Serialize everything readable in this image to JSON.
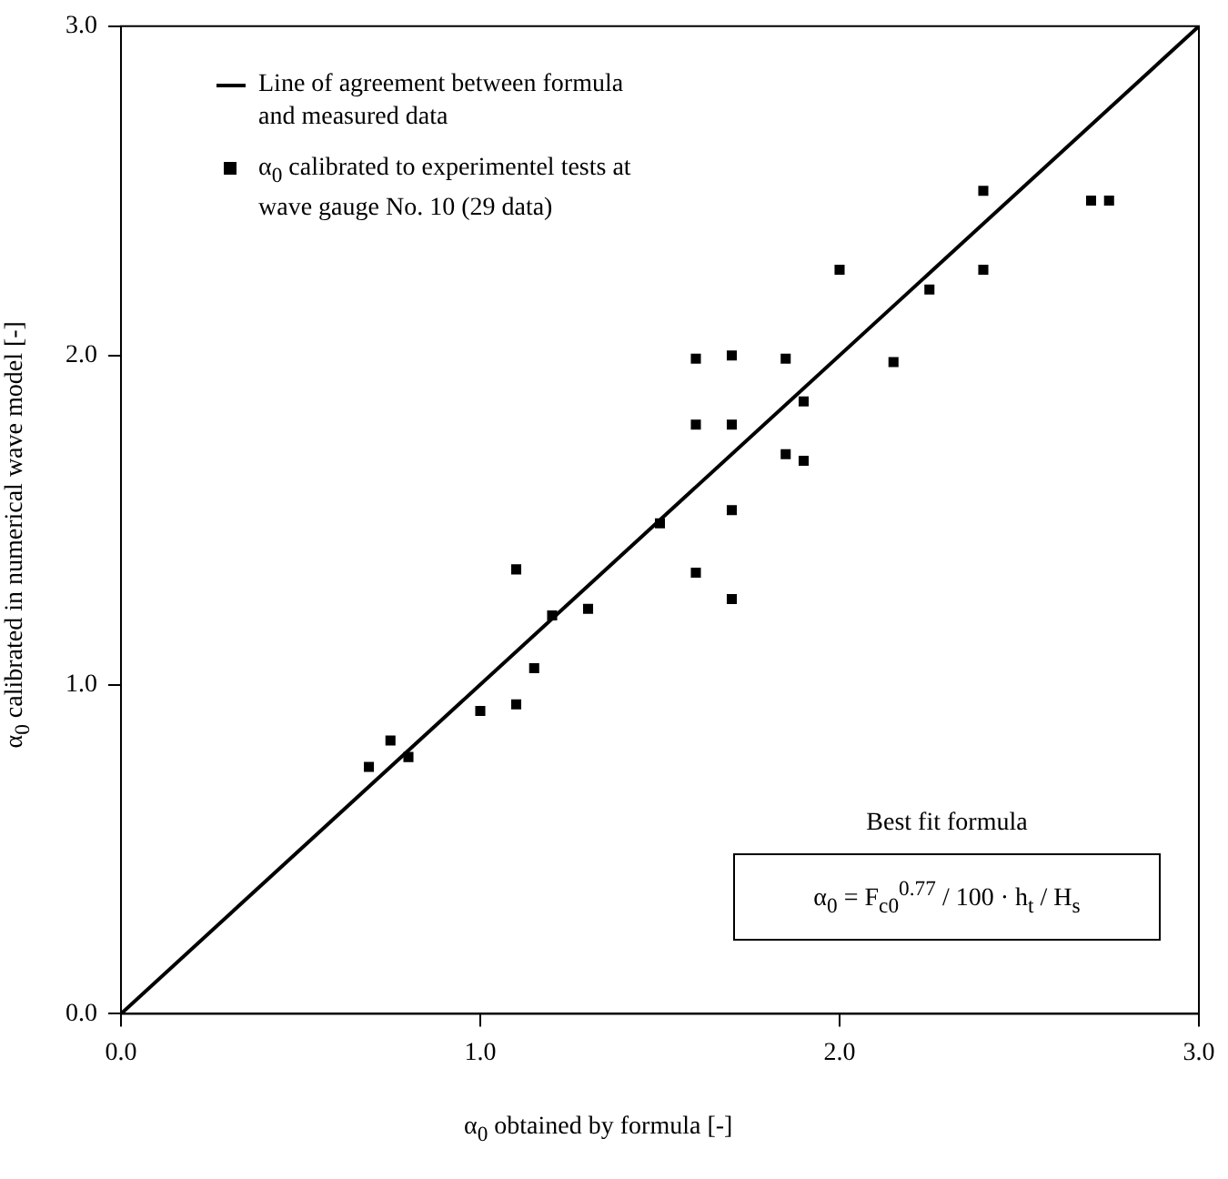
{
  "chart_data": {
    "type": "scatter",
    "xlabel": "α$_{0}$ obtained by formula [-]",
    "ylabel": "α$_{0}$ calibrated in numerical wave model [-]",
    "xlim": [
      0,
      3
    ],
    "ylim": [
      0,
      3
    ],
    "xticks": [
      {
        "value": 0,
        "label": "0.0"
      },
      {
        "value": 1,
        "label": "1.0"
      },
      {
        "value": 2,
        "label": "2.0"
      },
      {
        "value": 3,
        "label": "3.0"
      }
    ],
    "yticks": [
      {
        "value": 0,
        "label": "0.0"
      },
      {
        "value": 1,
        "label": "1.0"
      },
      {
        "value": 2,
        "label": "2.0"
      },
      {
        "value": 3,
        "label": "3.0"
      }
    ],
    "grid": false,
    "legend": "top left",
    "series": [
      {
        "name": "Line of agreement between formula and measured data",
        "type": "line",
        "color": "#000000",
        "marker": "none",
        "x": [
          0,
          3
        ],
        "values": [
          0,
          3
        ]
      },
      {
        "name": "α$_{0}$ calibrated to experimentel tests at wave gauge No. 10 (29 data)",
        "type": "scatter",
        "color": "#000000",
        "marker": "square",
        "x": [
          0.69,
          0.75,
          0.8,
          1.0,
          1.1,
          1.15,
          1.1,
          1.2,
          1.3,
          1.5,
          1.6,
          1.7,
          1.6,
          1.7,
          1.6,
          1.7,
          1.7,
          1.85,
          1.85,
          1.9,
          1.9,
          2.0,
          2.15,
          2.25,
          2.4,
          2.4,
          2.7,
          2.75
        ],
        "values": [
          0.75,
          0.83,
          0.78,
          0.92,
          0.94,
          1.05,
          1.35,
          1.21,
          1.23,
          1.49,
          1.34,
          1.26,
          1.79,
          1.79,
          1.99,
          2.0,
          1.53,
          1.99,
          1.7,
          1.68,
          1.86,
          2.26,
          1.98,
          2.2,
          2.5,
          2.26,
          2.47,
          2.47
        ]
      }
    ],
    "annotations": [
      "Best fit formula",
      "α$_{0}$ = F$_{c0}$$^{0.77}$ / 100 · h$_{t}$ / H$_{s}$"
    ]
  }
}
